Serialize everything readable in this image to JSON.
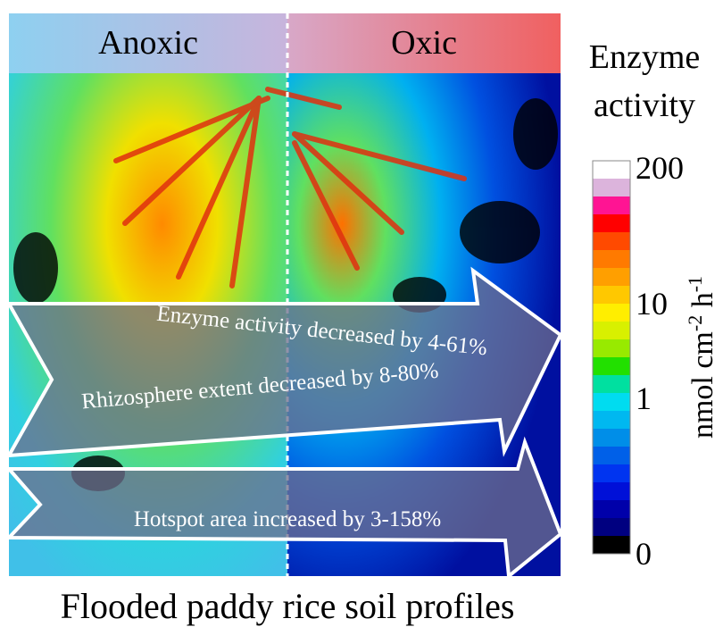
{
  "header": {
    "left": "Anoxic",
    "right": "Oxic"
  },
  "legend": {
    "title": [
      "Enzyme",
      "activity"
    ],
    "ticks": [
      "200",
      "10",
      "1",
      "0"
    ],
    "unit": [
      "nmol cm",
      "-2",
      " h",
      "-1"
    ],
    "colors": [
      "#ffffff",
      "#dcb4dc",
      "#ff1493",
      "#ff0000",
      "#ff4a00",
      "#ff7a00",
      "#ff9f00",
      "#ffc800",
      "#ffee00",
      "#d8f000",
      "#98ea00",
      "#22e000",
      "#00e0a0",
      "#00dcf0",
      "#00b8f0",
      "#008ee8",
      "#0060e8",
      "#0034f0",
      "#0010d8",
      "#0000aa",
      "#000080",
      "#000000"
    ]
  },
  "arrows": [
    "Enzyme activity decreased by 4-61%",
    "Rhizosphere extent decreased by 8-80%",
    "Hotspot area increased by 3-158%"
  ],
  "caption": "Flooded paddy rice soil profiles"
}
